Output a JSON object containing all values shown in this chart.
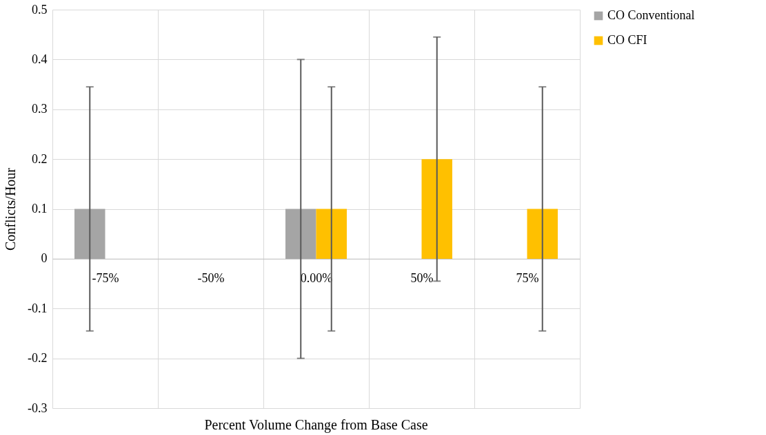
{
  "chart_data": {
    "type": "bar",
    "xlabel": "Percent Volume Change from Base Case",
    "ylabel": "Conflicts/Hour",
    "categories": [
      "-75%",
      "-50%",
      "0.00%",
      "50%",
      "75%"
    ],
    "series": [
      {
        "name": "CO Conventional",
        "color": "#a5a5a5",
        "values": [
          0.1,
          0,
          0.1,
          0,
          0
        ],
        "errors": [
          0.245,
          null,
          0.3,
          null,
          null
        ]
      },
      {
        "name": "CO CFI",
        "color": "#ffc000",
        "values": [
          0,
          0,
          0.1,
          0.2,
          0.1
        ],
        "errors": [
          null,
          null,
          0.245,
          0.245,
          0.245
        ]
      }
    ],
    "ylim": [
      -0.3,
      0.5
    ],
    "yticks": [
      -0.3,
      -0.2,
      -0.1,
      0,
      0.1,
      0.2,
      0.3,
      0.4,
      0.5
    ],
    "grid": true,
    "legend": "right"
  }
}
